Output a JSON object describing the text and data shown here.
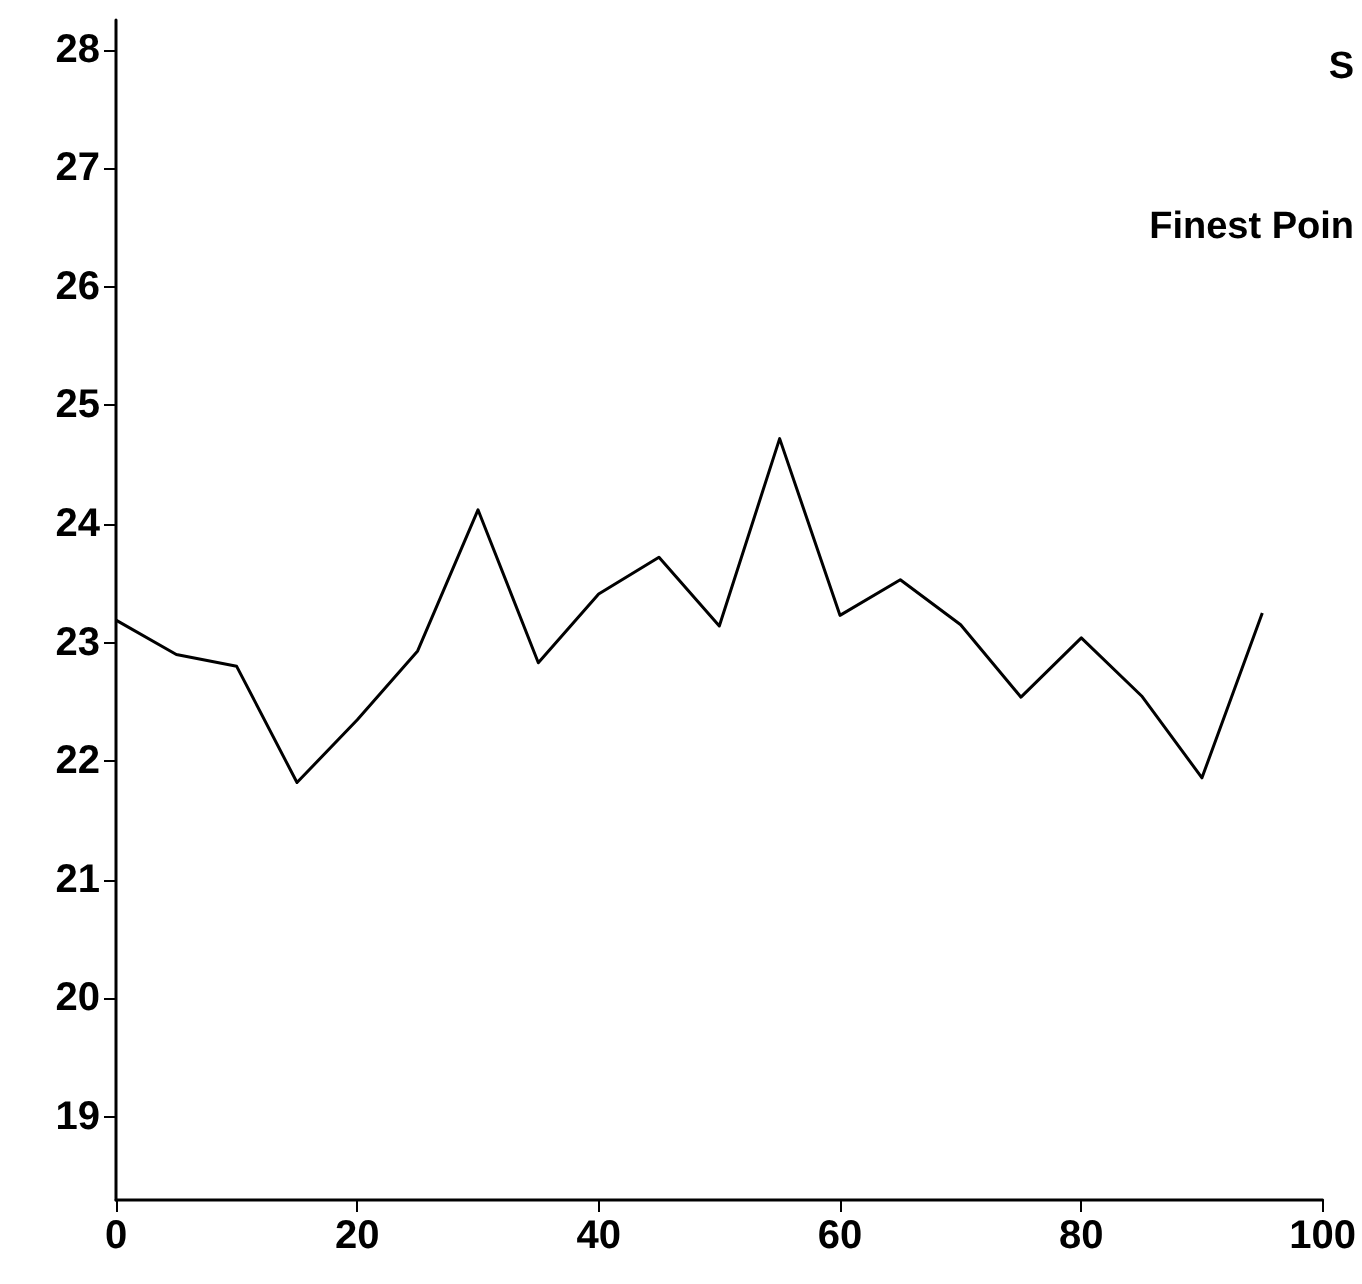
{
  "chart_data": {
    "type": "line",
    "x": [
      0,
      5,
      10,
      15,
      20,
      25,
      30,
      35,
      40,
      45,
      50,
      55,
      60,
      65,
      70,
      75,
      80,
      85,
      90,
      95
    ],
    "series": [
      {
        "color": "#000000",
        "values": [
          23.19,
          22.9,
          22.8,
          21.82,
          22.35,
          22.93,
          24.12,
          22.83,
          23.41,
          23.72,
          23.14,
          24.72,
          23.23,
          23.53,
          23.15,
          22.54,
          23.04,
          22.55,
          21.86,
          23.25
        ]
      }
    ],
    "xlim": [
      0,
      100
    ],
    "xticks": [
      0,
      20,
      40,
      60,
      80,
      100
    ],
    "ylim": [
      18.3,
      28.25
    ],
    "yticks": [
      19,
      20,
      21,
      22,
      23,
      24,
      25,
      26,
      27,
      28
    ],
    "annotations": [
      "S",
      "Finest Poin"
    ],
    "grid": false,
    "marker": "none",
    "line_style": "solid"
  }
}
